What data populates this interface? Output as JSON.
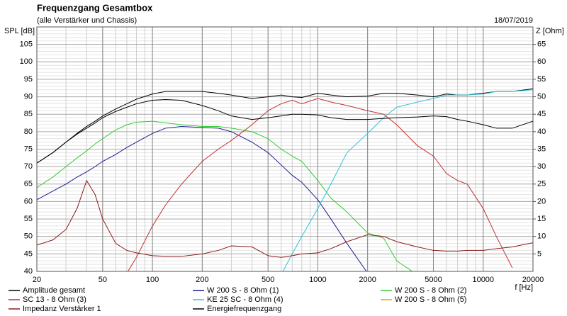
{
  "chart_data": {
    "type": "line",
    "title": "Frequenzgang Gesamtbox",
    "subtitle": "(alle Verstärker und Chassis)",
    "date": "18/07/2019",
    "ylabel": "SPL [dB]",
    "y2label": "Z [Ohm]",
    "xlabel": "f [Hz]",
    "log_x": true,
    "grid": true,
    "x": [
      20,
      25,
      30,
      35,
      40,
      45,
      50,
      60,
      70,
      80,
      100,
      120,
      150,
      200,
      250,
      300,
      400,
      500,
      600,
      700,
      800,
      1000,
      1200,
      1500,
      2000,
      2500,
      3000,
      4000,
      5000,
      6000,
      7000,
      8000,
      10000,
      12000,
      15000,
      20000
    ],
    "xlim": [
      20,
      20000
    ],
    "xticks": [
      20,
      50,
      100,
      200,
      500,
      1000,
      2000,
      5000,
      10000,
      20000
    ],
    "ylim": [
      40,
      110
    ],
    "yticks": [
      40,
      45,
      50,
      55,
      60,
      65,
      70,
      75,
      80,
      85,
      90,
      95,
      100,
      105
    ],
    "y2lim": [
      0,
      70
    ],
    "y2ticks": [
      5,
      10,
      15,
      20,
      25,
      30,
      35,
      40,
      45,
      50,
      55,
      60,
      65
    ],
    "series": [
      {
        "name": "Amplitude gesamt",
        "color": "#000000",
        "values": [
          71,
          74,
          77,
          79.5,
          81.5,
          83,
          84.5,
          86.5,
          88,
          89.3,
          90.8,
          91.5,
          91.5,
          91.5,
          91,
          90.5,
          89.5,
          90,
          90.5,
          90,
          89.8,
          91,
          90.5,
          90,
          90.2,
          91,
          91,
          90.5,
          90,
          90.8,
          90.5,
          90.5,
          91,
          91.5,
          91.5,
          92.3
        ]
      },
      {
        "name": "W 200 S - 8 Ohm (1)",
        "color": "#1c1c8a",
        "values": [
          60.5,
          63,
          65,
          67,
          68.5,
          70,
          71.5,
          73.5,
          75.5,
          77,
          79.5,
          81,
          81.5,
          81.2,
          81,
          80,
          77,
          74,
          70.5,
          67.5,
          65.5,
          60.5,
          55,
          48,
          39.5,
          null,
          null,
          null,
          null,
          null,
          null,
          null,
          null,
          null,
          null,
          null
        ]
      },
      {
        "name": "W 200 S - 8 Ohm (2)",
        "color": "#33cc33",
        "values": [
          64,
          67,
          70,
          72.5,
          74.5,
          76.5,
          78,
          80.5,
          82,
          82.7,
          83,
          82.5,
          82,
          81.5,
          81.5,
          81,
          80,
          78,
          75,
          73,
          71.5,
          66,
          61,
          57,
          51,
          49.5,
          43,
          39,
          null,
          null,
          null,
          null,
          null,
          null,
          null,
          null
        ]
      },
      {
        "name": "SC 13 - 8 Ohm (3)",
        "color": "#c03030",
        "values": [
          null,
          null,
          null,
          null,
          null,
          null,
          null,
          null,
          39.5,
          44,
          53,
          59,
          65,
          71.5,
          75,
          77.5,
          82,
          86,
          88,
          89,
          88,
          89.5,
          88.5,
          87.5,
          86,
          85,
          82,
          76,
          73,
          68,
          66,
          65,
          58,
          50,
          41,
          null
        ]
      },
      {
        "name": "KE 25 SC - 8 Ohm  (4)",
        "color": "#2ec4d6",
        "values": [
          null,
          null,
          null,
          null,
          null,
          null,
          null,
          null,
          null,
          null,
          null,
          null,
          null,
          null,
          null,
          null,
          null,
          null,
          39,
          45,
          50,
          58,
          65,
          74,
          79.5,
          84,
          87,
          88.5,
          89.5,
          90.5,
          90.5,
          90.5,
          90.8,
          91.5,
          91.5,
          92
        ]
      },
      {
        "name": "W 200 S - 8 Ohm (5)",
        "color": "#e0a030",
        "values": [
          null,
          null,
          null,
          null,
          null,
          null,
          null,
          null,
          null,
          null,
          null,
          null,
          null,
          null,
          null,
          null,
          null,
          null,
          null,
          null,
          null,
          null,
          null,
          null,
          null,
          null,
          null,
          null,
          null,
          null,
          null,
          null,
          null,
          null,
          null,
          null
        ]
      },
      {
        "name": "Impedanz Verstärker 1",
        "color": "#8b1a1a",
        "axis": "y2",
        "values": [
          7.5,
          9,
          12,
          18,
          26,
          22,
          15,
          8,
          6,
          5.3,
          4.5,
          4.3,
          4.3,
          5,
          6,
          7.3,
          7,
          4.5,
          4,
          4.5,
          5,
          5.3,
          6.5,
          8.5,
          10.5,
          10,
          8.5,
          7,
          6,
          5.8,
          5.8,
          6,
          6,
          6.5,
          7,
          8.2
        ]
      },
      {
        "name": "Energiefrequenzgang",
        "color": "#000000",
        "values": [
          71,
          74,
          77,
          79.3,
          81,
          82.5,
          84,
          85.8,
          87,
          88,
          89,
          89.2,
          89,
          87.5,
          86,
          84.5,
          83.5,
          84,
          84.5,
          85,
          85,
          84.8,
          84,
          83.5,
          83.5,
          83.8,
          84,
          84.2,
          84.5,
          84.3,
          83.5,
          83,
          82,
          81,
          81,
          83
        ]
      }
    ]
  }
}
